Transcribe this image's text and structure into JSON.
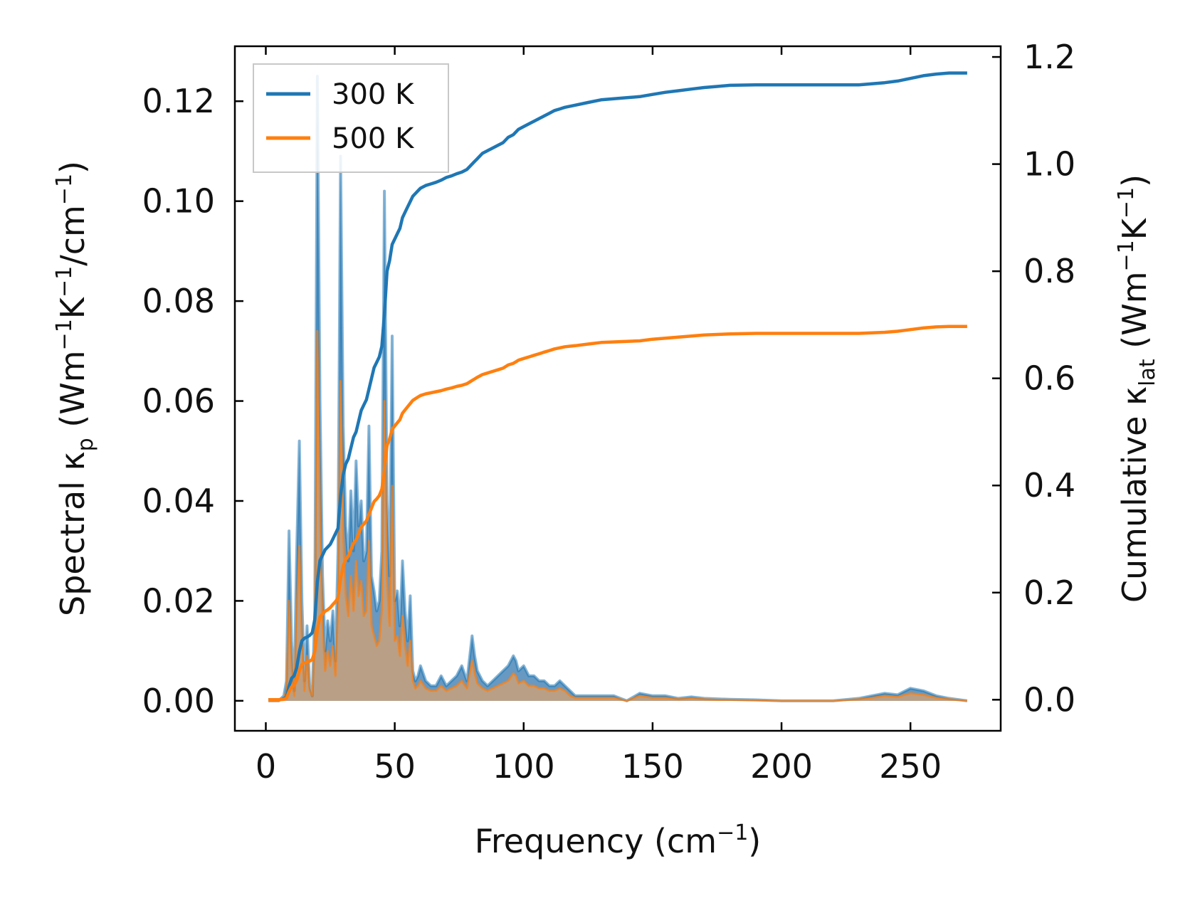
{
  "chart_data": {
    "type": "line",
    "x_axis": {
      "label": "Frequency (cm",
      "label_sup": "−1",
      "label_suffix": ")",
      "range": [
        -12,
        285
      ],
      "ticks": [
        0,
        50,
        100,
        150,
        200,
        250
      ],
      "tick_labels": [
        "0",
        "50",
        "100",
        "150",
        "200",
        "250"
      ]
    },
    "y_left": {
      "label_parts": [
        "Spectral κ",
        "p",
        " (Wm",
        "−1",
        "K",
        "−1",
        "/cm",
        "−1",
        ")"
      ],
      "range": [
        -0.006,
        0.131
      ],
      "ticks": [
        0,
        0.02,
        0.04,
        0.06,
        0.08,
        0.1,
        0.12
      ],
      "tick_labels": [
        "0.00",
        "0.02",
        "0.04",
        "0.06",
        "0.08",
        "0.10",
        "0.12"
      ]
    },
    "y_right": {
      "label_parts": [
        "Cumulative κ",
        "lat",
        " (Wm",
        "−1",
        "K",
        "−1",
        ")"
      ],
      "range": [
        -0.058,
        1.22
      ],
      "ticks": [
        0,
        0.2,
        0.4,
        0.6,
        0.8,
        1.0,
        1.2
      ],
      "tick_labels": [
        "0.0",
        "0.2",
        "0.4",
        "0.6",
        "0.8",
        "1.0",
        "1.2"
      ]
    },
    "legend": {
      "position": "top-left",
      "entries": [
        "300 K",
        "500 K"
      ]
    },
    "colors": {
      "300 K": "#1f77b4",
      "500 K": "#ff7f0e",
      "fill_300": "#5f94bf",
      "fill_500": "#c8a07a"
    },
    "series": [
      {
        "name": "300 K",
        "axis": "left",
        "kind": "spectral",
        "x": [
          1,
          5,
          7,
          8,
          9,
          10,
          11,
          12,
          13,
          14,
          15,
          16,
          17,
          18,
          19,
          20,
          21,
          22,
          23,
          24,
          25,
          26,
          27,
          28,
          29,
          30,
          31,
          32,
          33,
          34,
          35,
          36,
          37,
          38,
          39,
          40,
          41,
          42,
          43,
          44,
          45,
          46,
          47,
          48,
          49,
          50,
          51,
          52,
          53,
          54,
          55,
          56,
          57,
          58,
          59,
          60,
          62,
          64,
          66,
          68,
          70,
          72,
          74,
          76,
          78,
          80,
          81,
          82,
          84,
          86,
          88,
          90,
          92,
          94,
          96,
          97,
          98,
          100,
          102,
          104,
          106,
          108,
          110,
          112,
          114,
          116,
          118,
          120,
          125,
          130,
          135,
          140,
          145,
          150,
          155,
          160,
          165,
          170,
          175,
          180,
          190,
          200,
          210,
          220,
          230,
          235,
          240,
          245,
          250,
          255,
          260,
          265,
          272
        ],
        "values": [
          0,
          0,
          0.001,
          0.004,
          0.034,
          0.012,
          0.002,
          0.03,
          0.052,
          0.02,
          0.004,
          0.015,
          0.003,
          0.001,
          0.018,
          0.125,
          0.06,
          0.025,
          0.01,
          0.016,
          0.012,
          0.018,
          0.008,
          0.03,
          0.109,
          0.055,
          0.035,
          0.028,
          0.042,
          0.03,
          0.048,
          0.035,
          0.04,
          0.028,
          0.03,
          0.055,
          0.025,
          0.022,
          0.018,
          0.02,
          0.03,
          0.102,
          0.04,
          0.025,
          0.073,
          0.02,
          0.022,
          0.015,
          0.028,
          0.018,
          0.012,
          0.021,
          0.006,
          0.004,
          0.005,
          0.007,
          0.004,
          0.003,
          0.003,
          0.005,
          0.003,
          0.004,
          0.005,
          0.007,
          0.004,
          0.013,
          0.009,
          0.006,
          0.004,
          0.003,
          0.004,
          0.005,
          0.006,
          0.007,
          0.009,
          0.008,
          0.006,
          0.007,
          0.005,
          0.005,
          0.004,
          0.004,
          0.003,
          0.003,
          0.004,
          0.003,
          0.002,
          0.001,
          0.001,
          0.001,
          0.001,
          0,
          0.0015,
          0.001,
          0.001,
          0.0005,
          0.0008,
          0.0005,
          0.0004,
          0.0003,
          0.0002,
          0,
          0,
          0,
          0.0005,
          0.001,
          0.0015,
          0.0012,
          0.0025,
          0.002,
          0.001,
          0.0005,
          0
        ]
      },
      {
        "name": "500 K",
        "axis": "left",
        "kind": "spectral",
        "x": [
          1,
          5,
          7,
          8,
          9,
          10,
          11,
          12,
          13,
          14,
          15,
          16,
          17,
          18,
          19,
          20,
          21,
          22,
          23,
          24,
          25,
          26,
          27,
          28,
          29,
          30,
          31,
          32,
          33,
          34,
          35,
          36,
          37,
          38,
          39,
          40,
          41,
          42,
          43,
          44,
          45,
          46,
          47,
          48,
          49,
          50,
          51,
          52,
          53,
          54,
          55,
          56,
          57,
          58,
          59,
          60,
          62,
          64,
          66,
          68,
          70,
          72,
          74,
          76,
          78,
          80,
          81,
          82,
          84,
          86,
          88,
          90,
          92,
          94,
          96,
          97,
          98,
          100,
          102,
          104,
          106,
          108,
          110,
          112,
          114,
          116,
          118,
          120,
          125,
          130,
          135,
          140,
          145,
          150,
          155,
          160,
          165,
          170,
          175,
          180,
          190,
          200,
          210,
          220,
          230,
          235,
          240,
          245,
          250,
          255,
          260,
          265,
          272
        ],
        "values": [
          0,
          0,
          0.0005,
          0.002,
          0.02,
          0.007,
          0.001,
          0.018,
          0.031,
          0.012,
          0.002,
          0.009,
          0.002,
          0.001,
          0.011,
          0.074,
          0.036,
          0.015,
          0.006,
          0.01,
          0.007,
          0.011,
          0.005,
          0.018,
          0.064,
          0.033,
          0.021,
          0.017,
          0.025,
          0.018,
          0.028,
          0.021,
          0.024,
          0.017,
          0.018,
          0.032,
          0.015,
          0.013,
          0.011,
          0.012,
          0.018,
          0.06,
          0.024,
          0.015,
          0.043,
          0.012,
          0.013,
          0.009,
          0.017,
          0.011,
          0.007,
          0.012,
          0.004,
          0.0025,
          0.003,
          0.004,
          0.0025,
          0.002,
          0.002,
          0.003,
          0.002,
          0.0025,
          0.003,
          0.004,
          0.0025,
          0.008,
          0.0055,
          0.0035,
          0.0025,
          0.002,
          0.0025,
          0.003,
          0.0035,
          0.004,
          0.0055,
          0.005,
          0.0035,
          0.004,
          0.003,
          0.003,
          0.0025,
          0.0025,
          0.002,
          0.002,
          0.0025,
          0.002,
          0.001,
          0.0006,
          0.0006,
          0.0006,
          0.0006,
          0,
          0.001,
          0.0006,
          0.0006,
          0.0003,
          0.0005,
          0.0003,
          0.0002,
          0.0002,
          0.0001,
          0,
          0,
          0,
          0.0003,
          0.0006,
          0.001,
          0.0008,
          0.0015,
          0.0012,
          0.0006,
          0.0003,
          0
        ]
      },
      {
        "name": "300 K",
        "axis": "right",
        "kind": "cumulative",
        "x": [
          1,
          5,
          7,
          8,
          9,
          10,
          11,
          12,
          13,
          14,
          15,
          16,
          17,
          18,
          19,
          20,
          21,
          22,
          23,
          24,
          25,
          26,
          27,
          28,
          29,
          30,
          31,
          32,
          33,
          34,
          35,
          36,
          37,
          38,
          39,
          40,
          41,
          42,
          43,
          44,
          45,
          46,
          47,
          48,
          49,
          50,
          51,
          52,
          53,
          54,
          55,
          56,
          57,
          58,
          59,
          60,
          62,
          64,
          66,
          68,
          70,
          72,
          74,
          76,
          78,
          80,
          81,
          82,
          84,
          86,
          88,
          90,
          92,
          94,
          96,
          97,
          98,
          100,
          102,
          104,
          106,
          108,
          110,
          112,
          114,
          116,
          118,
          120,
          125,
          130,
          135,
          140,
          145,
          150,
          155,
          160,
          165,
          170,
          175,
          180,
          190,
          200,
          210,
          220,
          230,
          235,
          240,
          245,
          250,
          255,
          260,
          265,
          272
        ],
        "values": [
          0,
          0,
          0.001,
          0.005,
          0.025,
          0.04,
          0.045,
          0.06,
          0.09,
          0.11,
          0.115,
          0.117,
          0.12,
          0.125,
          0.15,
          0.22,
          0.26,
          0.27,
          0.28,
          0.285,
          0.29,
          0.3,
          0.31,
          0.32,
          0.38,
          0.42,
          0.44,
          0.45,
          0.47,
          0.49,
          0.5,
          0.52,
          0.54,
          0.55,
          0.56,
          0.58,
          0.6,
          0.62,
          0.63,
          0.64,
          0.66,
          0.72,
          0.8,
          0.82,
          0.85,
          0.86,
          0.87,
          0.88,
          0.9,
          0.91,
          0.92,
          0.93,
          0.94,
          0.945,
          0.95,
          0.955,
          0.96,
          0.963,
          0.966,
          0.97,
          0.975,
          0.978,
          0.982,
          0.985,
          0.99,
          1.0,
          1.005,
          1.01,
          1.02,
          1.025,
          1.03,
          1.035,
          1.04,
          1.05,
          1.055,
          1.06,
          1.065,
          1.07,
          1.075,
          1.08,
          1.085,
          1.09,
          1.095,
          1.1,
          1.103,
          1.106,
          1.108,
          1.11,
          1.115,
          1.12,
          1.122,
          1.124,
          1.126,
          1.13,
          1.134,
          1.137,
          1.14,
          1.143,
          1.145,
          1.147,
          1.148,
          1.148,
          1.148,
          1.148,
          1.148,
          1.15,
          1.152,
          1.155,
          1.16,
          1.165,
          1.168,
          1.17,
          1.17
        ]
      },
      {
        "name": "500 K",
        "axis": "right",
        "kind": "cumulative",
        "x": [
          1,
          5,
          7,
          8,
          9,
          10,
          11,
          12,
          13,
          14,
          15,
          16,
          17,
          18,
          19,
          20,
          21,
          22,
          23,
          24,
          25,
          26,
          27,
          28,
          29,
          30,
          31,
          32,
          33,
          34,
          35,
          36,
          37,
          38,
          39,
          40,
          41,
          42,
          43,
          44,
          45,
          46,
          47,
          48,
          49,
          50,
          51,
          52,
          53,
          54,
          55,
          56,
          57,
          58,
          59,
          60,
          62,
          64,
          66,
          68,
          70,
          72,
          74,
          76,
          78,
          80,
          81,
          82,
          84,
          86,
          88,
          90,
          92,
          94,
          96,
          97,
          98,
          100,
          102,
          104,
          106,
          108,
          110,
          112,
          114,
          116,
          118,
          120,
          125,
          130,
          135,
          140,
          145,
          150,
          155,
          160,
          165,
          170,
          175,
          180,
          190,
          200,
          210,
          220,
          230,
          235,
          240,
          245,
          250,
          255,
          260,
          265,
          272
        ],
        "values": [
          0,
          0,
          0.0006,
          0.003,
          0.015,
          0.024,
          0.027,
          0.036,
          0.054,
          0.066,
          0.069,
          0.07,
          0.072,
          0.075,
          0.09,
          0.13,
          0.155,
          0.16,
          0.165,
          0.168,
          0.172,
          0.178,
          0.183,
          0.19,
          0.225,
          0.25,
          0.262,
          0.268,
          0.28,
          0.292,
          0.298,
          0.31,
          0.322,
          0.328,
          0.334,
          0.346,
          0.358,
          0.37,
          0.375,
          0.381,
          0.393,
          0.43,
          0.475,
          0.487,
          0.505,
          0.511,
          0.517,
          0.523,
          0.535,
          0.541,
          0.547,
          0.553,
          0.559,
          0.562,
          0.565,
          0.568,
          0.571,
          0.573,
          0.575,
          0.577,
          0.58,
          0.582,
          0.585,
          0.587,
          0.59,
          0.596,
          0.599,
          0.602,
          0.607,
          0.61,
          0.613,
          0.616,
          0.619,
          0.625,
          0.628,
          0.631,
          0.634,
          0.637,
          0.64,
          0.643,
          0.646,
          0.649,
          0.652,
          0.655,
          0.657,
          0.659,
          0.66,
          0.661,
          0.664,
          0.667,
          0.668,
          0.669,
          0.67,
          0.673,
          0.675,
          0.677,
          0.679,
          0.681,
          0.682,
          0.683,
          0.684,
          0.684,
          0.684,
          0.684,
          0.684,
          0.685,
          0.686,
          0.688,
          0.691,
          0.694,
          0.696,
          0.697,
          0.697
        ]
      }
    ]
  }
}
